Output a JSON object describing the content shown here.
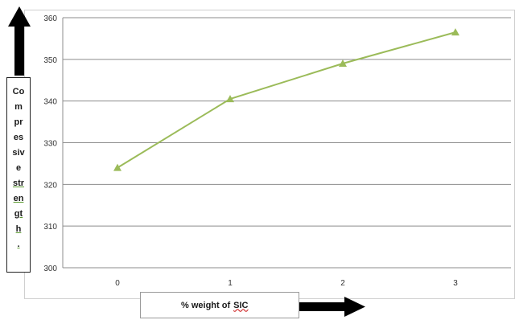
{
  "chart_data": {
    "type": "line",
    "title": "",
    "xlabel_text": "% weight of ",
    "xlabel_sic": "SIC",
    "ylabel_chunks": [
      "Co",
      "m",
      "pr",
      "es",
      "siv",
      "e",
      "str",
      "en",
      "gt",
      "h",
      "."
    ],
    "categories": [
      "0",
      "1",
      "2",
      "3"
    ],
    "series": [
      {
        "name": "",
        "values": [
          324,
          340.5,
          349,
          356.5
        ]
      }
    ],
    "y_ticks": [
      300,
      310,
      320,
      330,
      340,
      350,
      360
    ],
    "ylim": [
      300,
      360
    ],
    "grid": true,
    "line_color": "#9bbb59",
    "arrow_color": "#000000"
  }
}
